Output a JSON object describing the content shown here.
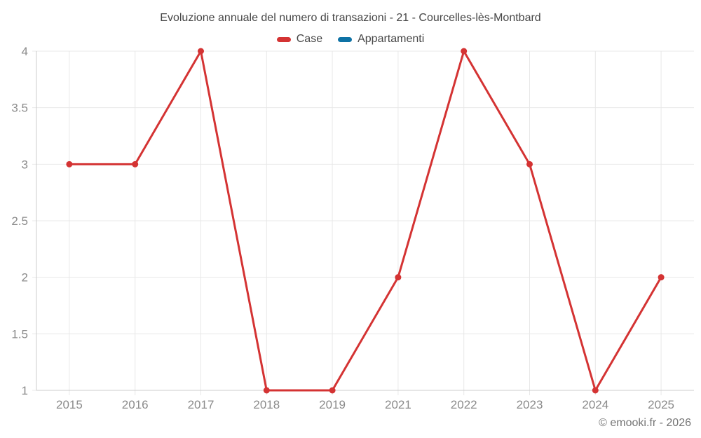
{
  "chart_data": {
    "type": "line",
    "title": "Evoluzione annuale del numero di transazioni - 21 - Courcelles-lès-Montbard",
    "categories": [
      "2015",
      "2016",
      "2017",
      "2018",
      "2019",
      "2021",
      "2022",
      "2023",
      "2024",
      "2025"
    ],
    "series": [
      {
        "name": "Case",
        "color": "#d43333",
        "values": [
          3,
          3,
          4,
          1,
          1,
          2,
          4,
          3,
          1,
          2
        ]
      },
      {
        "name": "Appartamenti",
        "color": "#0e72a5",
        "values": []
      }
    ],
    "ylim": [
      1,
      4
    ],
    "yticks": [
      1,
      1.5,
      2,
      2.5,
      3,
      3.5,
      4
    ],
    "grid": true,
    "legend_position": "top",
    "xlabel": "",
    "ylabel": ""
  },
  "footer": {
    "copyright": "© emooki.fr - 2026"
  }
}
